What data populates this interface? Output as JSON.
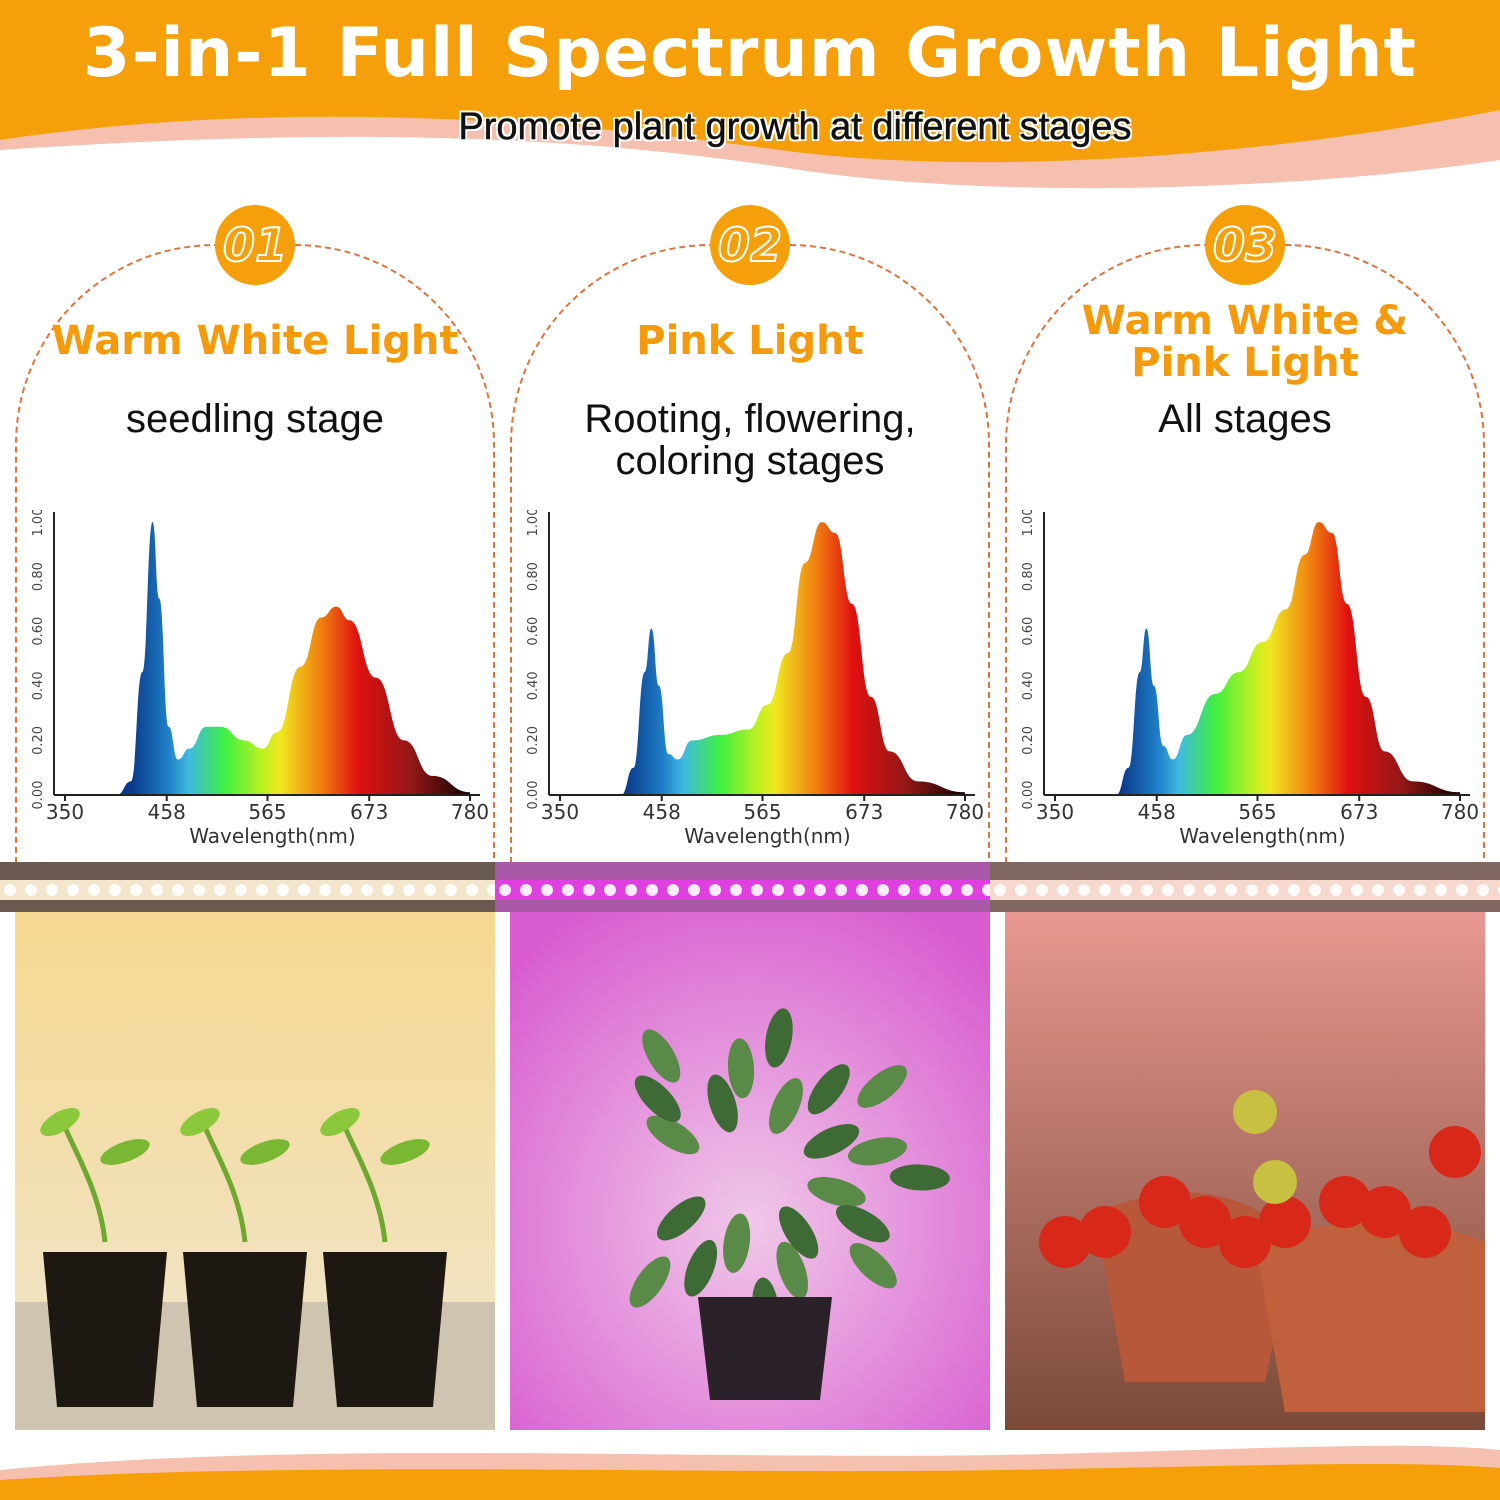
{
  "header": {
    "title": "3-in-1 Full Spectrum Growth Light",
    "subtitle": "Promote plant growth at different stages",
    "colors": {
      "orange": "#f5a00a",
      "pink": "#f6c0b0",
      "dashed": "#e0733c"
    }
  },
  "panels": [
    {
      "number": "01",
      "title_lines": [
        "Warm White Light"
      ],
      "subtitle_lines": [
        "seedling stage"
      ],
      "light_color": "warm-white",
      "photo": "seedlings in three black pots"
    },
    {
      "number": "02",
      "title_lines": [
        "Pink Light"
      ],
      "subtitle_lines": [
        "Rooting, flowering,",
        "coloring stages"
      ],
      "light_color": "pink",
      "photo": "potted leafy plant"
    },
    {
      "number": "03",
      "title_lines": [
        "Warm White &",
        "Pink Light"
      ],
      "subtitle_lines": [
        "All stages"
      ],
      "light_color": "warm-white-pink",
      "photo": "tomato plants in terracotta pots"
    }
  ],
  "chart_data": [
    {
      "type": "area",
      "xlabel": "Wavelength(nm)",
      "ylabel": "",
      "x_ticks": [
        "350",
        "458",
        "565",
        "673",
        "780"
      ],
      "y_ticks": [
        "0.00",
        "0.20",
        "0.40",
        "0.60",
        "0.80",
        "1.00"
      ],
      "xlim": [
        350,
        780
      ],
      "ylim": [
        0,
        1
      ],
      "points": [
        [
          405,
          0
        ],
        [
          420,
          0.05
        ],
        [
          432,
          0.45
        ],
        [
          443,
          1.0
        ],
        [
          450,
          0.72
        ],
        [
          460,
          0.25
        ],
        [
          470,
          0.13
        ],
        [
          482,
          0.17
        ],
        [
          500,
          0.25
        ],
        [
          515,
          0.25
        ],
        [
          540,
          0.2
        ],
        [
          560,
          0.17
        ],
        [
          575,
          0.23
        ],
        [
          600,
          0.47
        ],
        [
          622,
          0.65
        ],
        [
          638,
          0.69
        ],
        [
          652,
          0.64
        ],
        [
          680,
          0.43
        ],
        [
          710,
          0.2
        ],
        [
          740,
          0.07
        ],
        [
          780,
          0.01
        ]
      ]
    },
    {
      "type": "area",
      "xlabel": "Wavelength(nm)",
      "ylabel": "",
      "x_ticks": [
        "350",
        "458",
        "565",
        "673",
        "780"
      ],
      "y_ticks": [
        "0.00",
        "0.20",
        "0.40",
        "0.60",
        "0.80",
        "1.00"
      ],
      "xlim": [
        350,
        780
      ],
      "ylim": [
        0,
        1
      ],
      "points": [
        [
          415,
          0
        ],
        [
          428,
          0.1
        ],
        [
          440,
          0.45
        ],
        [
          447,
          0.61
        ],
        [
          455,
          0.4
        ],
        [
          465,
          0.15
        ],
        [
          475,
          0.13
        ],
        [
          490,
          0.2
        ],
        [
          520,
          0.22
        ],
        [
          550,
          0.24
        ],
        [
          570,
          0.33
        ],
        [
          592,
          0.52
        ],
        [
          610,
          0.85
        ],
        [
          628,
          1.0
        ],
        [
          642,
          0.96
        ],
        [
          660,
          0.7
        ],
        [
          680,
          0.36
        ],
        [
          700,
          0.16
        ],
        [
          730,
          0.05
        ],
        [
          780,
          0.01
        ]
      ]
    },
    {
      "type": "area",
      "xlabel": "Wavelength(nm)",
      "ylabel": "",
      "x_ticks": [
        "350",
        "458",
        "565",
        "673",
        "780"
      ],
      "y_ticks": [
        "0.00",
        "0.20",
        "0.40",
        "0.60",
        "0.80",
        "1.00"
      ],
      "xlim": [
        350,
        780
      ],
      "ylim": [
        0,
        1
      ],
      "points": [
        [
          415,
          0
        ],
        [
          428,
          0.1
        ],
        [
          440,
          0.45
        ],
        [
          447,
          0.61
        ],
        [
          455,
          0.4
        ],
        [
          465,
          0.18
        ],
        [
          475,
          0.13
        ],
        [
          490,
          0.22
        ],
        [
          520,
          0.37
        ],
        [
          545,
          0.45
        ],
        [
          570,
          0.56
        ],
        [
          595,
          0.68
        ],
        [
          615,
          0.88
        ],
        [
          630,
          1.0
        ],
        [
          644,
          0.96
        ],
        [
          660,
          0.7
        ],
        [
          680,
          0.36
        ],
        [
          700,
          0.16
        ],
        [
          730,
          0.05
        ],
        [
          780,
          0.01
        ]
      ]
    }
  ]
}
